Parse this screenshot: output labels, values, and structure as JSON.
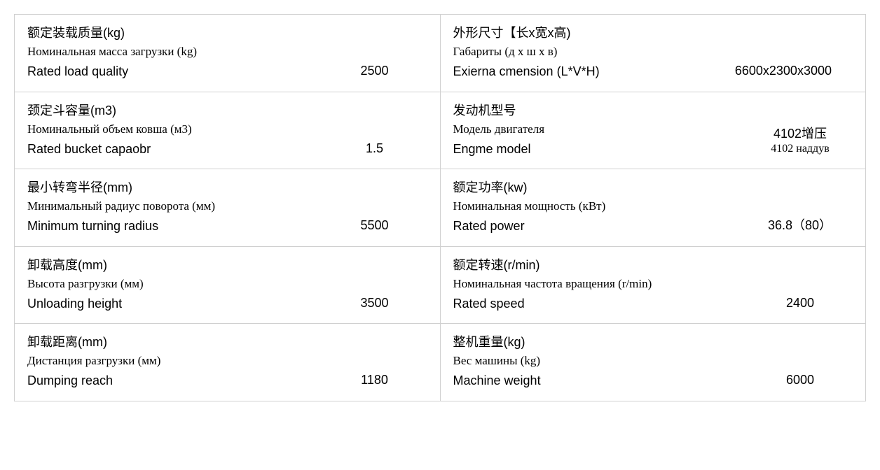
{
  "table": {
    "border_color": "#d0d0d0",
    "background_color": "#ffffff",
    "text_color": "#000000",
    "font_size_cn": 18,
    "font_size_ru": 17,
    "font_size_en": 18,
    "font_size_value": 18
  },
  "rows": [
    {
      "left": {
        "cn": "额定装载质量(kg)",
        "ru": "Номинальная масса загрузки (kg)",
        "en": "Rated load quality",
        "value": "2500"
      },
      "right": {
        "cn": "外形尺寸【长x宽x高)",
        "ru": "Габариты (д х ш х в)",
        "en": "Exierna cmension (L*V*H)",
        "value": "6600x2300x3000"
      }
    },
    {
      "left": {
        "cn": "颈定斗容量(m3)",
        "ru": "Номинальный объем ковша (м3)",
        "en": "Rated bucket capaobr",
        "value": "1.5"
      },
      "right": {
        "cn": "发动机型号",
        "ru": "Модель двигателя",
        "en": "Engme model",
        "value": "4102增压",
        "value_sub": "4102 наддув"
      }
    },
    {
      "left": {
        "cn": "最小转弯半径(mm)",
        "ru": "Минимальный радиус поворота (мм)",
        "en": "Minimum turning radius",
        "value": "5500"
      },
      "right": {
        "cn": "额定功率(kw)",
        "ru": "Номинальная мощность (кВт)",
        "en": "Rated power",
        "value": "36.8（80）"
      }
    },
    {
      "left": {
        "cn": "卸载高度(mm)",
        "ru": "Высота разгрузки (мм)",
        "en": "Unloading height",
        "value": "3500"
      },
      "right": {
        "cn": "额定转速(r/min)",
        "ru": "Номинальная частота вращения (r/min)",
        "en": "Rated speed",
        "value": "2400"
      }
    },
    {
      "left": {
        "cn": "卸载距离(mm)",
        "ru": "Дистанция разгрузки (мм)",
        "en": "Dumping reach",
        "value": "1180"
      },
      "right": {
        "cn": "整机重量(kg)",
        "ru": "Вес машины (kg)",
        "en": "Machine weight",
        "value": "6000"
      }
    }
  ]
}
